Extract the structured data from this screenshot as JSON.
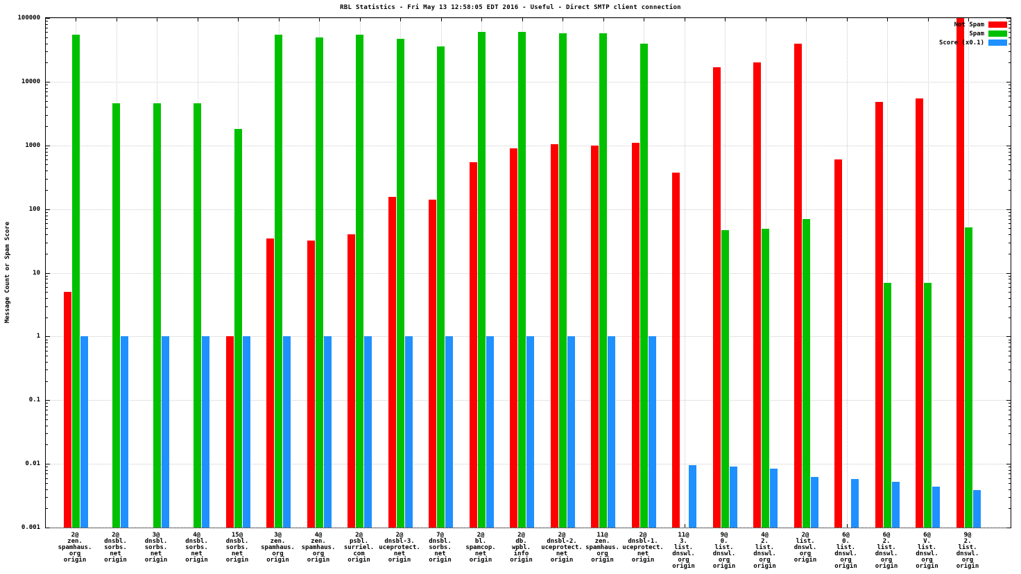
{
  "chart_data": {
    "type": "bar",
    "title": "RBL Statistics - Fri May 13 12:58:05 EDT 2016 - Useful - Direct SMTP client connection",
    "ylabel": "Message Count or Spam Score",
    "xlabel": "",
    "yscale": "log",
    "ylim": [
      0.001,
      100000
    ],
    "ytick_labels": [
      "100000",
      "10000",
      "1000",
      "100",
      "10",
      "1",
      "0.1",
      "0.01",
      "0.001"
    ],
    "grid": true,
    "legend_position": "top-right",
    "categories": [
      [
        "2@",
        "zen.",
        "spamhaus.",
        "org",
        "origin"
      ],
      [
        "2@",
        "dnsbl.",
        "sorbs.",
        "net",
        "origin"
      ],
      [
        "3@",
        "dnsbl.",
        "sorbs.",
        "net",
        "origin"
      ],
      [
        "4@",
        "dnsbl.",
        "sorbs.",
        "net",
        "origin"
      ],
      [
        "15@",
        "dnsbl.",
        "sorbs.",
        "net",
        "origin"
      ],
      [
        "3@",
        "zen.",
        "spamhaus.",
        "org",
        "origin"
      ],
      [
        "4@",
        "zen.",
        "spamhaus.",
        "org",
        "origin"
      ],
      [
        "2@",
        "psbl.",
        "surriel.",
        "com",
        "origin"
      ],
      [
        "2@",
        "dnsbl-3.",
        "uceprotect.",
        "net",
        "origin"
      ],
      [
        "7@",
        "dnsbl.",
        "sorbs.",
        "net",
        "origin"
      ],
      [
        "2@",
        "bl.",
        "spamcop.",
        "net",
        "origin"
      ],
      [
        "2@",
        "db.",
        "wpbl.",
        "info",
        "origin"
      ],
      [
        "2@",
        "dnsbl-2.",
        "uceprotect.",
        "net",
        "origin"
      ],
      [
        "11@",
        "zen.",
        "spamhaus.",
        "org",
        "origin"
      ],
      [
        "2@",
        "dnsbl-1.",
        "uceprotect.",
        "net",
        "origin"
      ],
      [
        "11@",
        "3.",
        "list.",
        "dnswl.",
        "org",
        "origin"
      ],
      [
        "9@",
        "0.",
        "list.",
        "dnswl.",
        "org",
        "origin"
      ],
      [
        "4@",
        "2.",
        "list.",
        "dnswl.",
        "org",
        "origin"
      ],
      [
        "2@",
        "list.",
        "dnswl.",
        "org",
        "origin"
      ],
      [
        "6@",
        "0.",
        "list.",
        "dnswl.",
        "org",
        "origin"
      ],
      [
        "6@",
        "2.",
        "list.",
        "dnswl.",
        "org",
        "origin"
      ],
      [
        "6@",
        "V.",
        "list.",
        "dnswl.",
        "org",
        "origin"
      ],
      [
        "9@",
        "2.",
        "list.",
        "dnswl.",
        "org",
        "origin"
      ]
    ],
    "series": [
      {
        "name": "Not Spam",
        "color": "#ff0000",
        "values": [
          5,
          null,
          null,
          null,
          1,
          35,
          32,
          40,
          155,
          140,
          550,
          900,
          1050,
          1000,
          1100,
          370,
          17000,
          20000,
          40000,
          600,
          4800,
          5500,
          100000
        ]
      },
      {
        "name": "Spam",
        "color": "#00c000",
        "values": [
          55000,
          4600,
          4600,
          4600,
          1800,
          55000,
          50000,
          55000,
          47000,
          36000,
          60000,
          60000,
          58000,
          57000,
          40000,
          null,
          47,
          49,
          70,
          null,
          7,
          7,
          52
        ]
      },
      {
        "name": "Score (x0.1)",
        "color": "#1e90ff",
        "values": [
          1,
          1,
          1,
          1,
          1,
          1,
          1,
          1,
          1,
          1,
          1,
          1,
          1,
          1,
          1,
          0.0095,
          0.009,
          0.0085,
          0.0062,
          0.0058,
          0.0052,
          0.0044,
          0.0039
        ]
      }
    ]
  }
}
